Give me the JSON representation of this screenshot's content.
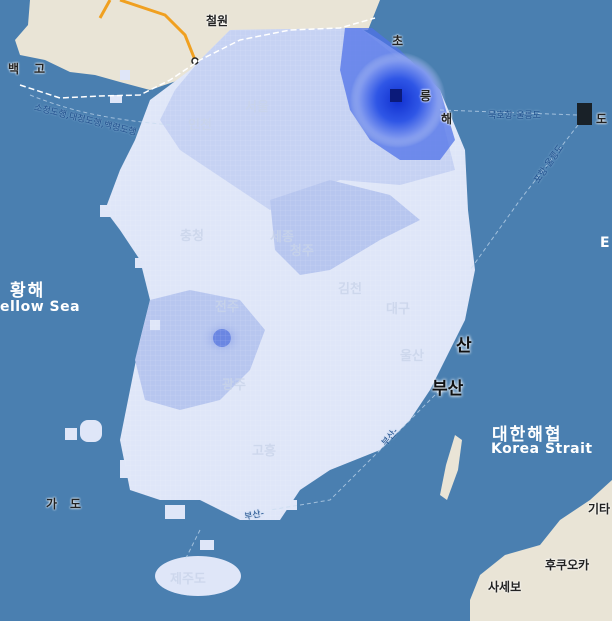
{
  "map": {
    "seas": [
      {
        "ko": "황해",
        "en": "ellow Sea"
      },
      {
        "ko": "대한해협",
        "en": "Korea Strait"
      }
    ],
    "edge_glyph": "E",
    "places": {
      "cheorwon": "철원",
      "baengnyeong_a": "백",
      "baengnyeong_b": "고",
      "busan": "부산",
      "busan_cut": "산",
      "sasebo": "사세보",
      "fukuoka": "후쿠오카",
      "kitakyushu": "기타",
      "gageodo_a": "가",
      "gageodo_b": "도",
      "ulleung_suffix": "도",
      "sokcho_fragment": "초",
      "gangneung_fragment": "릉",
      "donghae_fragment": "해"
    },
    "routes": [
      "소청도행,대청도행,백령도행",
      "묵호항-울릉도",
      "포항-울릉도",
      "부산-",
      "부산-"
    ],
    "faint_labels": [
      "인천",
      "서울",
      "세종",
      "대구",
      "울산",
      "전주",
      "광주",
      "제주도",
      "충청",
      "김천",
      "청주",
      "고흥"
    ],
    "colors": {
      "sea": "#4a7fb0",
      "land": "#e9e4d6",
      "road": "#f0a020",
      "precip_light": "#dfe6f8",
      "precip_mid": "#b7c6ef",
      "precip_strong": "#2f56e6",
      "precip_peak": "#0b1a7a"
    }
  }
}
